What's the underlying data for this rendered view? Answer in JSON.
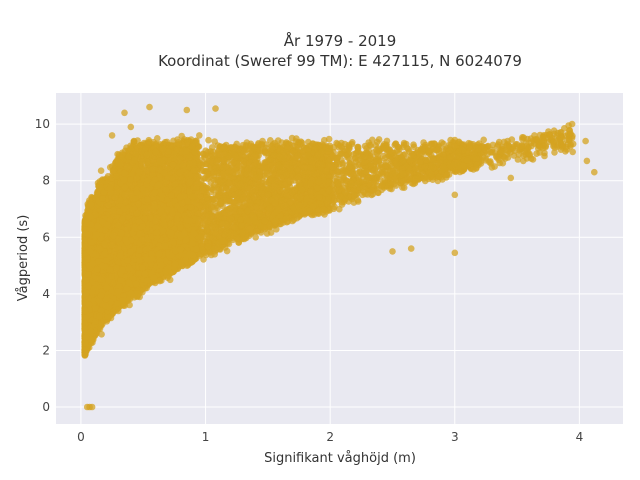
{
  "chart_data": {
    "type": "scatter",
    "title_lines": [
      "År 1979 - 2019",
      "Koordinat (Sweref 99 TM): E 427115, N 6024079"
    ],
    "xlabel": "Signifikant våghöjd (m)",
    "ylabel": "Vågperiod (s)",
    "xlim": [
      -0.2,
      4.35
    ],
    "ylim": [
      -0.6,
      11.1
    ],
    "xticks": [
      0,
      1,
      2,
      3,
      4
    ],
    "yticks": [
      0,
      2,
      4,
      6,
      8,
      10
    ],
    "grid": true,
    "legend": "none",
    "colors": {
      "plot_background": "#e9e9f1",
      "grid": "#ffffff",
      "marker": "#d4a320"
    },
    "point_count": 12000,
    "outlier_points": [
      [
        0.05,
        0.0
      ],
      [
        0.07,
        0.0
      ],
      [
        0.09,
        0.0
      ],
      [
        0.35,
        10.4
      ],
      [
        0.55,
        10.6
      ],
      [
        0.85,
        10.5
      ],
      [
        1.08,
        10.55
      ],
      [
        0.25,
        9.6
      ],
      [
        0.4,
        9.9
      ],
      [
        0.95,
        9.6
      ],
      [
        1.25,
        9.3
      ],
      [
        1.6,
        9.1
      ],
      [
        1.9,
        8.9
      ],
      [
        2.2,
        8.8
      ],
      [
        2.75,
        9.35
      ],
      [
        3.3,
        9.0
      ],
      [
        3.32,
        8.5
      ],
      [
        3.55,
        8.7
      ],
      [
        3.8,
        9.0
      ],
      [
        3.9,
        9.1
      ],
      [
        3.95,
        9.3
      ],
      [
        4.05,
        9.4
      ],
      [
        4.12,
        8.3
      ],
      [
        4.06,
        8.7
      ],
      [
        3.6,
        8.95
      ],
      [
        3.45,
        8.1
      ],
      [
        3.15,
        8.4
      ],
      [
        3.0,
        5.45
      ],
      [
        2.5,
        5.5
      ],
      [
        2.65,
        5.6
      ],
      [
        3.0,
        7.5
      ]
    ]
  }
}
